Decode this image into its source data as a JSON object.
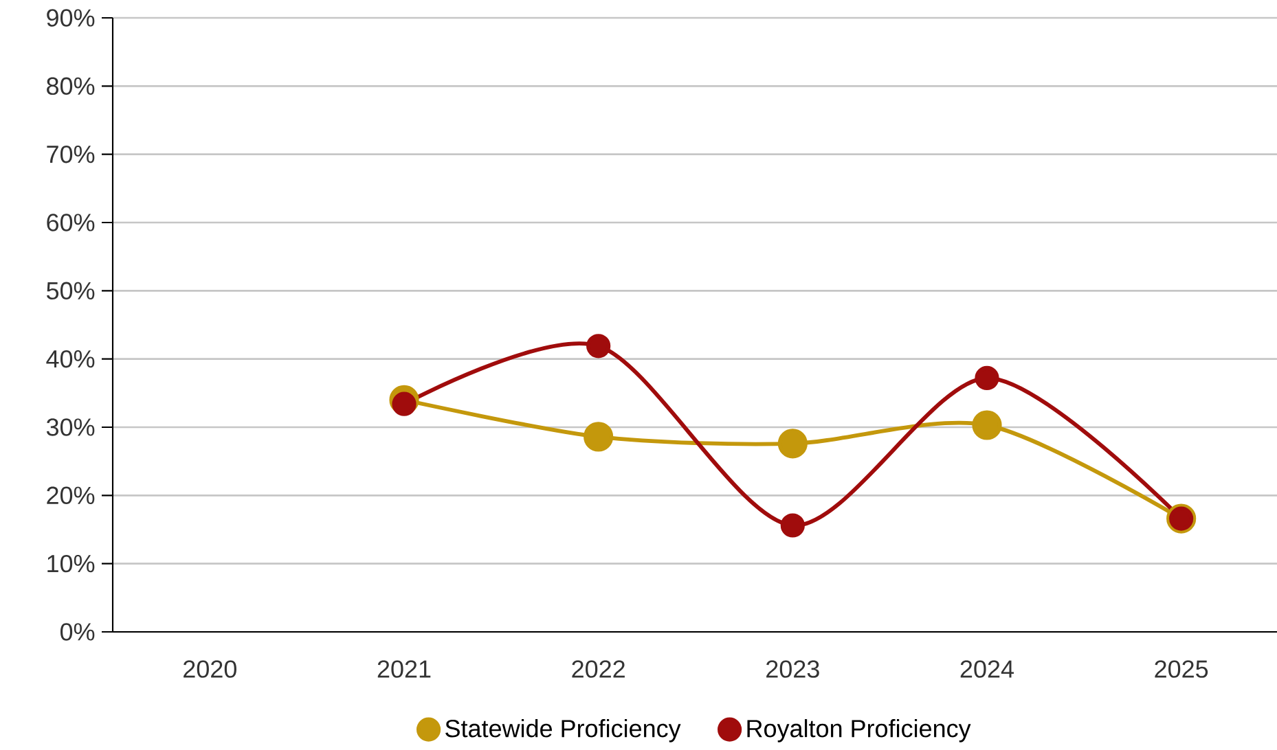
{
  "chart_data": {
    "type": "line",
    "categories": [
      "2020",
      "2021",
      "2022",
      "2023",
      "2024",
      "2025"
    ],
    "series": [
      {
        "name": "Statewide Proficiency",
        "color": "#c4980c",
        "values": [
          null,
          34.0,
          28.6,
          27.6,
          30.3,
          16.6
        ]
      },
      {
        "name": "Royalton Proficiency",
        "color": "#a00c0c",
        "values": [
          null,
          33.4,
          41.9,
          15.6,
          37.2,
          16.6
        ]
      }
    ],
    "ylim": [
      0,
      90
    ],
    "yticks": [
      {
        "value": 0,
        "label": "0%"
      },
      {
        "value": 10,
        "label": "10%"
      },
      {
        "value": 20,
        "label": "20%"
      },
      {
        "value": 30,
        "label": "30%"
      },
      {
        "value": 40,
        "label": "40%"
      },
      {
        "value": 50,
        "label": "50%"
      },
      {
        "value": 60,
        "label": "60%"
      },
      {
        "value": 70,
        "label": "70%"
      },
      {
        "value": 80,
        "label": "80%"
      },
      {
        "value": 90,
        "label": "90%"
      }
    ],
    "grid": "y",
    "legend": "bottom",
    "marker": "circle",
    "line_style": "solid"
  }
}
